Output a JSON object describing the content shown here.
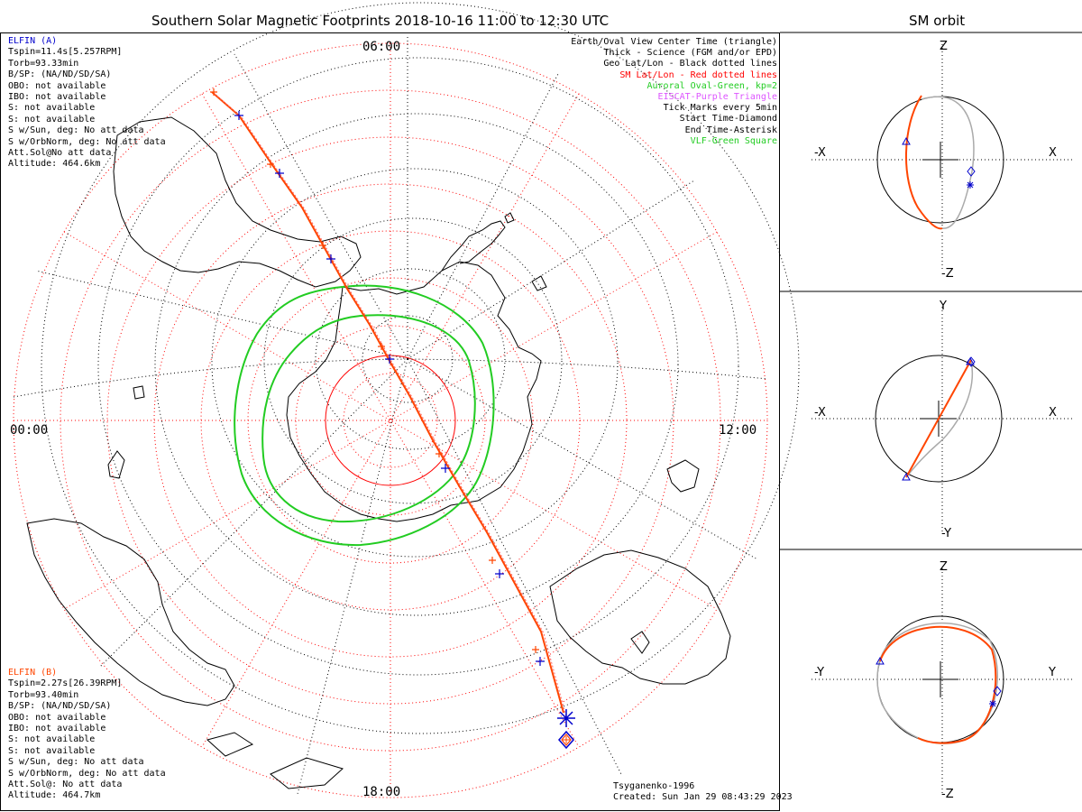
{
  "header": {
    "title": "Southern Solar Magnetic Footprints 2018-10-16 11:00 to 12:30 UTC",
    "orbit_title": "SM orbit"
  },
  "elfin_a": {
    "name": "ELFIN (A)",
    "color": "#0000cc",
    "lines": [
      "Tspin=11.4s[5.257RPM]",
      "Torb=93.33min",
      "B/SP: (NA/ND/SD/SA)",
      "OBO: not available",
      "IBO: not available",
      "S: not available",
      "S: not available",
      "S w/Sun, deg: No att data",
      "S w/OrbNorm, deg: No att data",
      "Att.Sol@No att data",
      "Altitude: 464.6km"
    ]
  },
  "elfin_b": {
    "name": "ELFIN (B)",
    "color": "#ff4500",
    "lines": [
      "Tspin=2.27s[26.39RPM]",
      "Torb=93.40min",
      "B/SP: (NA/ND/SD/SA)",
      "OBO: not available",
      "IBO: not available",
      "S: not available",
      "S: not available",
      "S w/Sun, deg: No att data",
      "S w/OrbNorm, deg: No att data",
      "Att.Sol@: No att data",
      "Altitude: 464.7km"
    ]
  },
  "legend": [
    {
      "text": "Earth/Oval View Center Time (triangle)",
      "color": "#000000"
    },
    {
      "text": "Thick - Science (FGM and/or EPD)",
      "color": "#000000"
    },
    {
      "text": "Geo Lat/Lon - Black dotted lines",
      "color": "#000000"
    },
    {
      "text": "SM Lat/Lon - Red dotted lines",
      "color": "#ff0000"
    },
    {
      "text": "Auroral Oval-Green, kp=2",
      "color": "#22cc22"
    },
    {
      "text": "EISCAT-Purple Triangle",
      "color": "#dd55ff"
    },
    {
      "text": "Tick Marks every 5min",
      "color": "#000000"
    },
    {
      "text": "Start Time-Diamond",
      "color": "#000000"
    },
    {
      "text": "End Time-Asterisk",
      "color": "#000000"
    },
    {
      "text": "VLF-Green Square",
      "color": "#22cc22"
    }
  ],
  "mlt_labels": {
    "top": "06:00",
    "left": "00:00",
    "right": "12:00",
    "bottom": "18:00"
  },
  "footer": {
    "model": "Tsyganenko-1996",
    "created": "Created: Sun Jan 29 08:43:29 2023"
  },
  "orbit_panels": [
    {
      "top": "Z",
      "bottom": "-Z",
      "left": "-X",
      "right": "X"
    },
    {
      "top": "Y",
      "bottom": "-Y",
      "left": "-X",
      "right": "X"
    },
    {
      "top": "Z",
      "bottom": "-Z",
      "left": "-Y",
      "right": "Y"
    }
  ]
}
